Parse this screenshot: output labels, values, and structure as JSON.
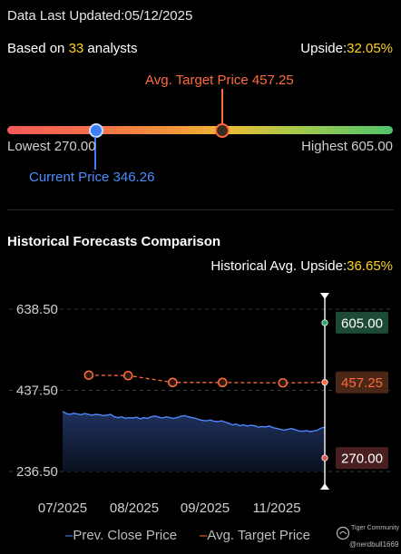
{
  "header": {
    "updated_label": "Data Last Updated:",
    "updated_date": "05/12/2025",
    "analysts_prefix": "Based on ",
    "analysts_count": "33",
    "analysts_suffix": " analysts",
    "upside_label": "Upside:",
    "upside_value": "32.05%"
  },
  "range": {
    "avg_label": "Avg. Target Price 457.25",
    "lowest_label": "Lowest 270.00",
    "highest_label": "Highest 605.00",
    "current_label": "Current Price 346.26",
    "low": 270.0,
    "high": 605.0,
    "avg": 457.25,
    "current": 346.26
  },
  "history": {
    "title": "Historical Forecasts Comparison",
    "upside_label": "Historical Avg. Upside:",
    "upside_value": "36.65%"
  },
  "chart_data": {
    "type": "line",
    "x_ticks": [
      "07/2025",
      "08/2025",
      "09/2025",
      "11/2025"
    ],
    "y_ticks": [
      "638.50",
      "437.50",
      "236.50"
    ],
    "ylim": [
      236.5,
      638.5
    ],
    "series": [
      {
        "name": "Prev. Close Price",
        "values": [
          385,
          380,
          378,
          381,
          379,
          377,
          380,
          378,
          376,
          378,
          377,
          375,
          376,
          378,
          372,
          370,
          372,
          368,
          370,
          369,
          371,
          367,
          370,
          368,
          372,
          374,
          371,
          369,
          372,
          370,
          368,
          370,
          373,
          375,
          372,
          370,
          368,
          365,
          363,
          362,
          364,
          361,
          360,
          362,
          359,
          356,
          352,
          354,
          350,
          352,
          349,
          351,
          350,
          346,
          348,
          347,
          349,
          345,
          343,
          341,
          339,
          341,
          343,
          340,
          337,
          336,
          338,
          335,
          337,
          339,
          344,
          346
        ]
      },
      {
        "name": "Avg. Target Price",
        "points": [
          [
            0.1,
            475
          ],
          [
            0.25,
            474
          ],
          [
            0.42,
            457
          ],
          [
            0.61,
            457
          ],
          [
            0.84,
            456
          ],
          [
            1.0,
            457.25
          ]
        ]
      }
    ],
    "markers": {
      "high": "605.00",
      "avg": "457.25",
      "low": "270.00"
    }
  },
  "legend": {
    "close_label": "Prev. Close Price",
    "target_label": "Avg. Target Price"
  },
  "watermark": {
    "brand": "Tiger Community",
    "user": "@nerdbull1669"
  },
  "colors": {
    "close": "#4f87ff",
    "target": "#ff6a3c",
    "high": "#29a869",
    "low": "#e05252",
    "accent": "#ffd21e"
  }
}
